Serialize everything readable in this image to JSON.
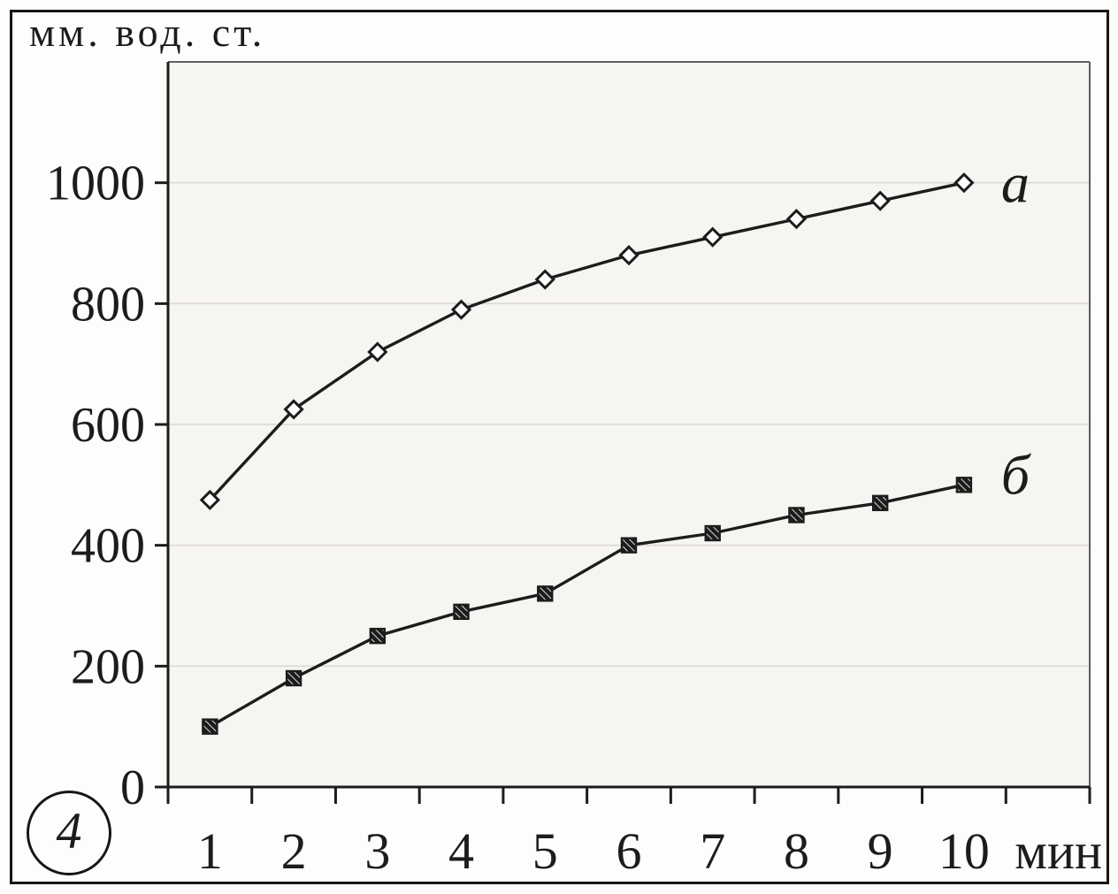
{
  "figure_number": "4",
  "title": "мм. вод. ст.",
  "x_axis_unit": "мин",
  "chart_data": {
    "type": "line",
    "title": "мм. вод. ст.",
    "ylabel": "мм. вод. ст.",
    "xlabel": "мин",
    "x": [
      1,
      2,
      3,
      4,
      5,
      6,
      7,
      8,
      9,
      10
    ],
    "x_tick_labels": [
      "1",
      "2",
      "3",
      "4",
      "5",
      "6",
      "7",
      "8",
      "9",
      "10"
    ],
    "yticks": [
      0,
      200,
      400,
      600,
      800,
      1000
    ],
    "ytick_labels": [
      "0",
      "200",
      "400",
      "600",
      "800",
      "1000"
    ],
    "ylim": [
      0,
      1200
    ],
    "grid": true,
    "legend_position": "labels-at-line-end",
    "series": [
      {
        "name": "а",
        "marker": "open-diamond",
        "values": [
          475,
          625,
          720,
          790,
          840,
          880,
          910,
          940,
          970,
          1000
        ]
      },
      {
        "name": "б",
        "marker": "hatched-square",
        "values": [
          100,
          180,
          250,
          290,
          320,
          400,
          420,
          450,
          470,
          500
        ]
      }
    ]
  },
  "colors": {
    "line": "#1c1c1c",
    "text": "#1c1c1c",
    "frame": "#161616",
    "plot_bg": "#f6f5f1",
    "plot_border": "#4a4a4a",
    "grid": "#dcd9d3",
    "page_bg": "#fdfdfc",
    "marker_open_fill": "#ffffff",
    "marker_hatch_fill": "#1c1c1c",
    "marker_hatch_stripe": "#ffffff"
  }
}
